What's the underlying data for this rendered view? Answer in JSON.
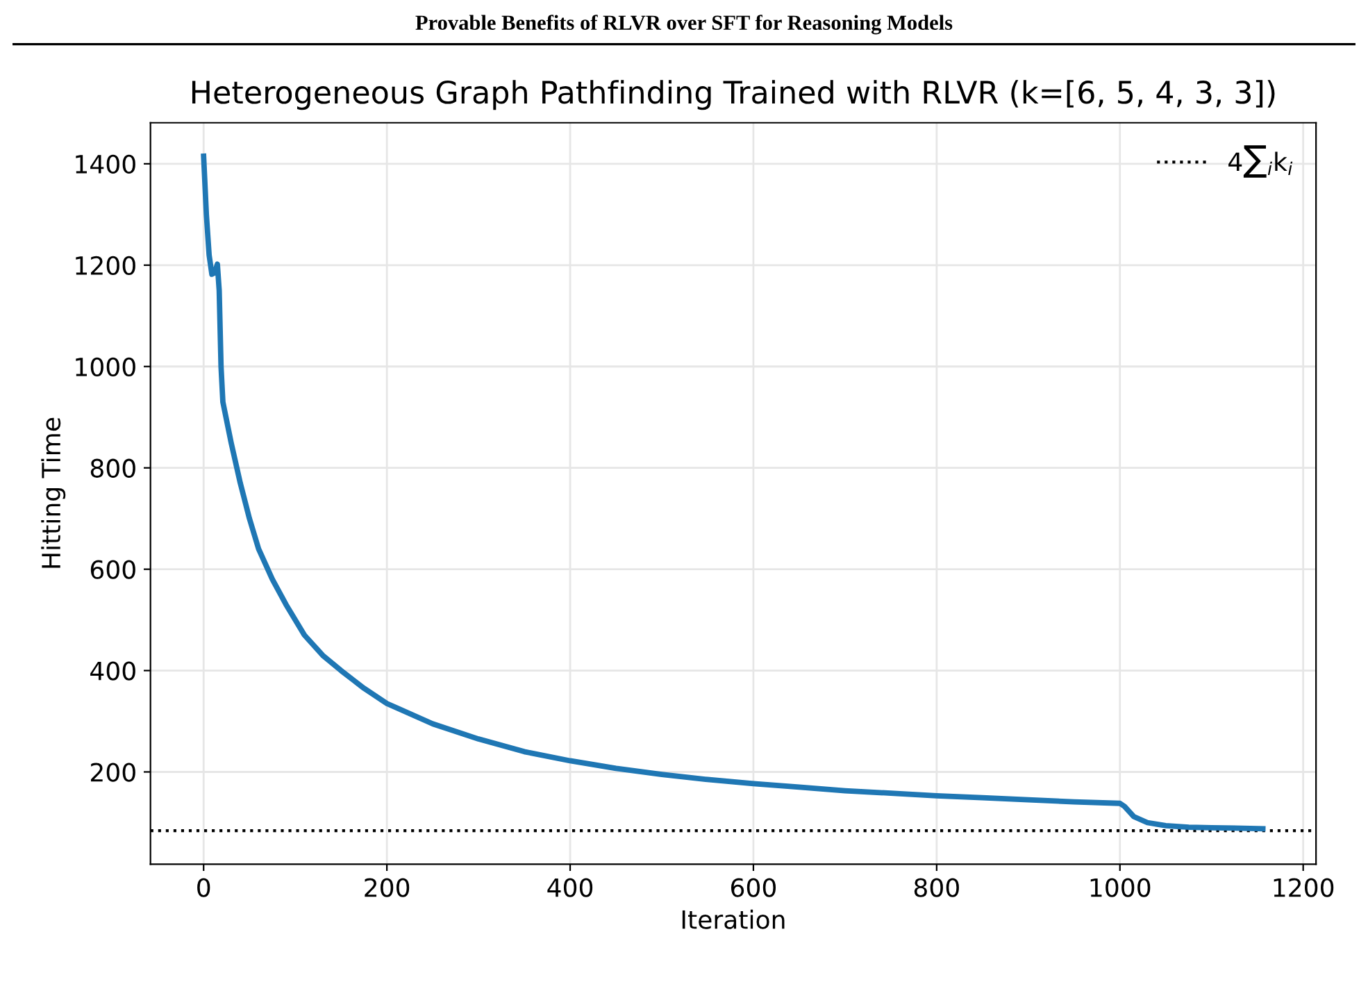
{
  "chart_data": {
    "type": "line",
    "title": "Heterogeneous Graph Pathfinding Trained with RLVR (k=[6, 5, 4, 3, 3])",
    "annotations": [
      "Provable Benefits of RLVR over SFT for Reasoning Models"
    ],
    "xlabel": "Iteration",
    "ylabel": "Hitting Time",
    "x": [
      0,
      3,
      6,
      9,
      12,
      15,
      17,
      19,
      21,
      30,
      40,
      50,
      60,
      75,
      90,
      110,
      130,
      150,
      175,
      200,
      250,
      300,
      350,
      400,
      450,
      500,
      550,
      600,
      650,
      700,
      750,
      800,
      850,
      900,
      950,
      1000,
      1005,
      1015,
      1030,
      1050,
      1075,
      1100,
      1156
    ],
    "series": [
      {
        "color": "#1f77b4",
        "values": [
          1415,
          1300,
          1220,
          1182,
          1185,
          1202,
          1150,
          1000,
          930,
          850,
          770,
          700,
          640,
          580,
          530,
          470,
          430,
          400,
          365,
          335,
          295,
          265,
          240,
          222,
          207,
          195,
          185,
          177,
          170,
          163,
          158,
          153,
          149,
          145,
          141,
          138,
          132,
          112,
          100,
          94,
          91,
          90,
          88
        ]
      }
    ],
    "ref_lines": [
      {
        "axis": "y",
        "value": 84,
        "label": "4∑$_{i}$k$_{i}$",
        "color": "#000000",
        "line_style": "dotted"
      }
    ],
    "xlim": [
      -58,
      1214
    ],
    "ylim": [
      18,
      1481
    ],
    "xticks": [
      0,
      200,
      400,
      600,
      800,
      1000,
      1200
    ],
    "yticks": [
      200,
      400,
      600,
      800,
      1000,
      1200,
      1400
    ],
    "grid": true,
    "legend": "top right",
    "marker": "none",
    "line_style": "solid"
  }
}
